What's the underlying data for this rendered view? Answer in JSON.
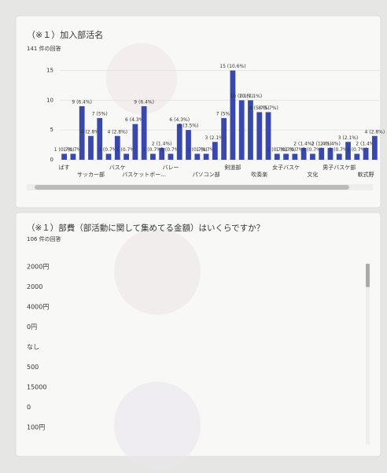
{
  "cards": [
    {
      "title": "（※１）加入部活名",
      "responses": "141 件の回答",
      "chart_data": {
        "type": "bar",
        "color": "#3949ab",
        "ylim": [
          0,
          16
        ],
        "yticks": [
          0,
          5,
          10,
          15
        ],
        "grid": true,
        "categories": [
          "ばす",
          null,
          null,
          "サッカー部",
          null,
          null,
          "バスケ",
          null,
          null,
          "バスケットボー...",
          null,
          null,
          "バレー",
          null,
          null,
          null,
          "パソコン部",
          null,
          null,
          "剣道部",
          null,
          null,
          "吹奏楽",
          null,
          null,
          "女子バスケ",
          null,
          null,
          "文化",
          null,
          null,
          "男子バスケ部",
          null,
          null,
          "軟式野",
          null
        ],
        "values": [
          1,
          1,
          9,
          4,
          7,
          1,
          4,
          1,
          6,
          9,
          1,
          2,
          1,
          6,
          5,
          1,
          1,
          3,
          7,
          15,
          10,
          10,
          8,
          8,
          1,
          1,
          1,
          2,
          1,
          2,
          2,
          1,
          3,
          1,
          2,
          4
        ],
        "value_labels": [
          "1 (0.7%)",
          "1 (0.7%)",
          "9 (6.4%)",
          "4 (2.8%)",
          "7 (5%)",
          "1 (0.7%)",
          "4 (2.8%)",
          "1 (0.7%)",
          "6 (4.3%)",
          "9 (6.4%)",
          "1 (0.7%)",
          "2 (1.4%)",
          "1 (0.7%)",
          "6 (4.3%)",
          "5 (3.5%)",
          "1 (0.7%)",
          "1 (0.7%)",
          "3 (2.1%)",
          "7 (5%)",
          "15 (10.6%)",
          "10 (7.1%)",
          "10 (7.1%)",
          "8 (5.7%)",
          "8 (5.7%)",
          "1 (0.7%)",
          "1 (0.7%)",
          "1 (0.7%)",
          "2 (1.4%)",
          "1 (0.7%)",
          "2 (1.4%)",
          "2 (1.4%)",
          "1 (0.7%)",
          "3 (2.1%)",
          "1 (0.7%)",
          "2 (1.4%)",
          "4 (2.8%)"
        ]
      }
    },
    {
      "title": "（※１）部費（部活動に関して集めてる金額）はいくらですか？",
      "responses": "106 件の回答",
      "answers": [
        "2000円",
        "2000",
        "4000円",
        "0円",
        "なし",
        "500",
        "15000",
        "0",
        "100円"
      ]
    }
  ]
}
